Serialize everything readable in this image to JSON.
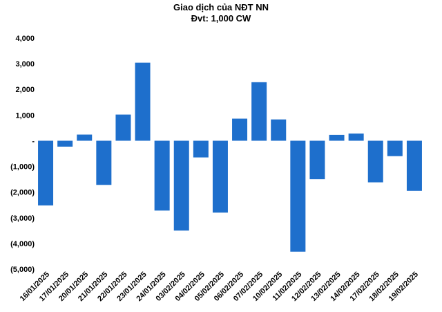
{
  "chart_data": {
    "type": "bar",
    "title": "Giao dịch của NĐT NN",
    "subtitle": "Đvt: 1,000 CW",
    "xlabel": "",
    "ylabel": "",
    "ylim": [
      -5000,
      4000
    ],
    "yticks": [
      4000,
      3000,
      2000,
      1000,
      0,
      -1000,
      -2000,
      -3000,
      -4000,
      -5000
    ],
    "ytick_labels": [
      "4,000",
      "3,000",
      "2,000",
      "1,000",
      "-",
      "(1,000)",
      "(2,000)",
      "(3,000)",
      "(4,000)",
      "(5,000)"
    ],
    "grid": false,
    "legend": "none",
    "bar_color": "#1e6fcc",
    "categories": [
      "16/01/2025",
      "17/01/2025",
      "20/01/2025",
      "21/01/2025",
      "22/01/2025",
      "23/01/2025",
      "24/01/2025",
      "03/02/2025",
      "04/02/2025",
      "05/02/2025",
      "06/02/2025",
      "07/02/2025",
      "10/02/2025",
      "11/02/2025",
      "12/02/2025",
      "13/02/2025",
      "14/02/2025",
      "17/02/2025",
      "18/02/2025",
      "19/02/2025"
    ],
    "values": [
      -2520,
      -230,
      240,
      -1720,
      1020,
      3040,
      -2720,
      -3500,
      -650,
      -2800,
      860,
      2280,
      830,
      -4320,
      -1500,
      230,
      280,
      -1620,
      -600,
      -1950
    ]
  }
}
